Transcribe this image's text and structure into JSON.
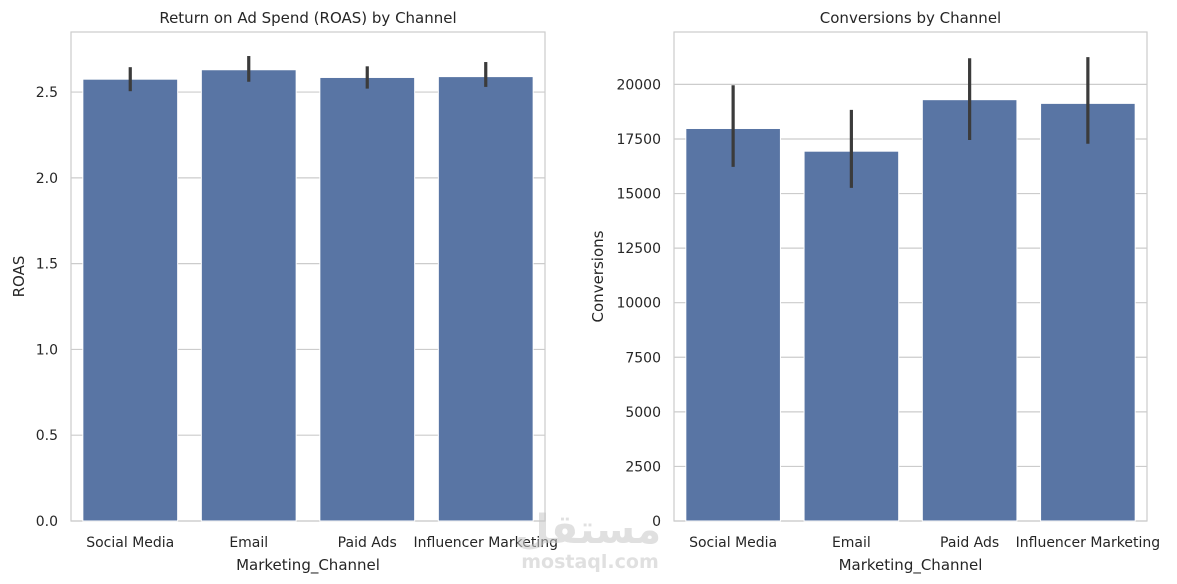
{
  "chart_data": [
    {
      "type": "bar",
      "title": "Return on Ad Spend (ROAS) by Channel",
      "xlabel": "Marketing_Channel",
      "ylabel": "ROAS",
      "categories": [
        "Social Media",
        "Email",
        "Paid Ads",
        "Influencer Marketing"
      ],
      "values": [
        2.575,
        2.63,
        2.585,
        2.59
      ],
      "error_low": [
        2.505,
        2.56,
        2.52,
        2.53
      ],
      "error_high": [
        2.645,
        2.71,
        2.65,
        2.675
      ],
      "ylim": [
        0,
        2.85
      ],
      "yticks": [
        0.0,
        0.5,
        1.0,
        1.5,
        2.0,
        2.5
      ],
      "ytick_labels": [
        "0.0",
        "0.5",
        "1.0",
        "1.5",
        "2.0",
        "2.5"
      ],
      "grid": true,
      "bar_color": "#5975a4",
      "error_color": "#3b3b3b"
    },
    {
      "type": "bar",
      "title": "Conversions by Channel",
      "xlabel": "Marketing_Channel",
      "ylabel": "Conversions",
      "categories": [
        "Social Media",
        "Email",
        "Paid Ads",
        "Influencer Marketing"
      ],
      "values": [
        17980,
        16940,
        19300,
        19130
      ],
      "error_low": [
        16220,
        15260,
        17450,
        17280
      ],
      "error_high": [
        19960,
        18830,
        21200,
        21250
      ],
      "ylim": [
        0,
        22400
      ],
      "yticks": [
        0,
        2500,
        5000,
        7500,
        10000,
        12500,
        15000,
        17500,
        20000
      ],
      "ytick_labels": [
        "0",
        "2500",
        "5000",
        "7500",
        "10000",
        "12500",
        "15000",
        "17500",
        "20000"
      ],
      "grid": true,
      "bar_color": "#5975a4",
      "error_color": "#3b3b3b"
    }
  ],
  "watermark": {
    "arabic": "مستقل",
    "latin": "mostaql.com"
  }
}
